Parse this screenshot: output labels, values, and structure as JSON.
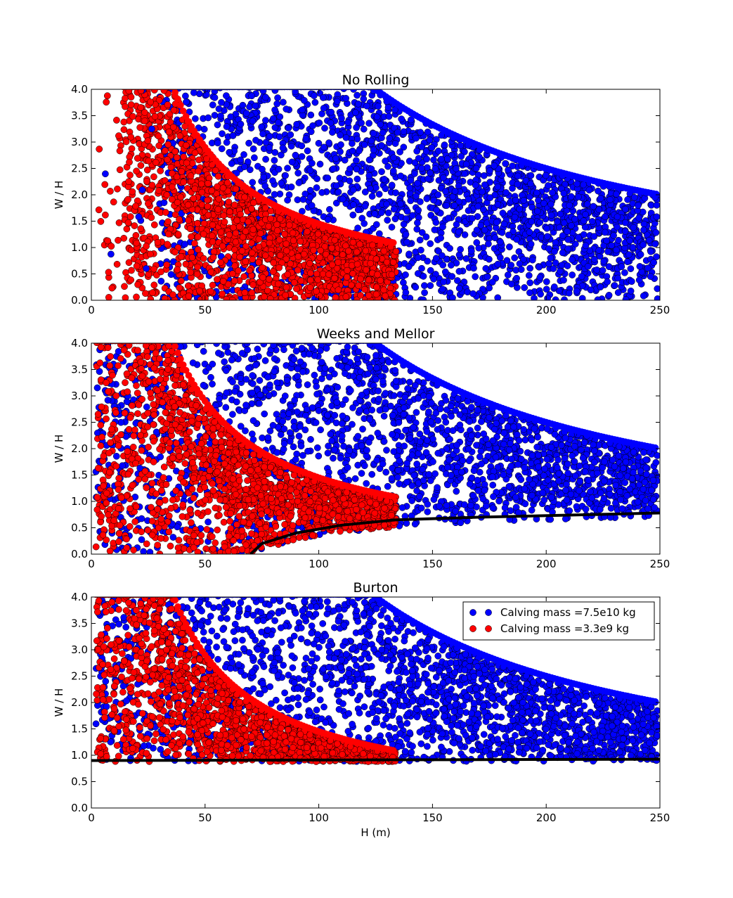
{
  "chart_data": [
    {
      "type": "scatter",
      "title": "No Rolling",
      "xlabel": "",
      "ylabel": "W / H",
      "xlim": [
        0,
        250
      ],
      "ylim": [
        0,
        4.0
      ],
      "xticks": [
        "0",
        "50",
        "100",
        "150",
        "200",
        "250"
      ],
      "yticks": [
        "0.0",
        "0.5",
        "1.0",
        "1.5",
        "2.0",
        "2.5",
        "3.0",
        "3.5",
        "4.0"
      ],
      "series": [
        {
          "name": "Calving mass =7.5e10 kg",
          "color": "#0000ff",
          "region": {
            "h_min": 30,
            "h_max": 250,
            "envelope": "W/H <= 500/H",
            "sample": [
              [
                40,
                4.0
              ],
              [
                60,
                3.9
              ],
              [
                100,
                3.5
              ],
              [
                133,
                2.5
              ],
              [
                150,
                2.2
              ],
              [
                200,
                1.5
              ],
              [
                250,
                1.0
              ],
              [
                245,
                0.2
              ]
            ]
          }
        },
        {
          "name": "Calving mass =3.3e9 kg",
          "color": "#ff0000",
          "region": {
            "h_min": 5,
            "h_max": 134,
            "envelope": "W/H <= 145/H",
            "sample": [
              [
                10,
                3.5
              ],
              [
                25,
                3.0
              ],
              [
                35,
                4.0
              ],
              [
                50,
                2.8
              ],
              [
                80,
                1.5
              ],
              [
                110,
                1.2
              ],
              [
                133,
                1.0
              ],
              [
                120,
                0.3
              ]
            ]
          }
        }
      ],
      "curves": []
    },
    {
      "type": "scatter",
      "title": "Weeks and Mellor",
      "xlabel": "",
      "ylabel": "W / H",
      "xlim": [
        0,
        250
      ],
      "ylim": [
        0,
        4.0
      ],
      "xticks": [
        "0",
        "50",
        "100",
        "150",
        "200",
        "250"
      ],
      "yticks": [
        "0.0",
        "0.5",
        "1.0",
        "1.5",
        "2.0",
        "2.5",
        "3.0",
        "3.5",
        "4.0"
      ],
      "series": [
        {
          "name": "Calving mass =7.5e10 kg",
          "color": "#0000ff",
          "region": {
            "h_min": 0,
            "h_max": 250,
            "envelope": "W/H <= 500/H",
            "sample": [
              [
                60,
                3.8
              ],
              [
                100,
                3.0
              ],
              [
                150,
                2.5
              ],
              [
                200,
                1.8
              ],
              [
                250,
                1.5
              ],
              [
                245,
                0.9
              ]
            ]
          }
        },
        {
          "name": "Calving mass =3.3e9 kg",
          "color": "#ff0000",
          "region": {
            "h_min": 2,
            "h_max": 134,
            "envelope": "W/H <= 145/H",
            "sample": [
              [
                10,
                3.0
              ],
              [
                30,
                3.8
              ],
              [
                60,
                2.0
              ],
              [
                100,
                1.2
              ],
              [
                133,
                1.0
              ],
              [
                70,
                0.1
              ]
            ]
          }
        }
      ],
      "curves": [
        {
          "name": "",
          "color": "#000000",
          "points": [
            [
              70,
              0.0
            ],
            [
              75,
              0.2
            ],
            [
              90,
              0.4
            ],
            [
              110,
              0.55
            ],
            [
              134,
              0.65
            ],
            [
              170,
              0.7
            ],
            [
              210,
              0.74
            ],
            [
              250,
              0.78
            ]
          ]
        }
      ]
    },
    {
      "type": "scatter",
      "title": "Burton",
      "xlabel": "H (m)",
      "ylabel": "W / H",
      "xlim": [
        0,
        250
      ],
      "ylim": [
        0,
        4.0
      ],
      "xticks": [
        "0",
        "50",
        "100",
        "150",
        "200",
        "250"
      ],
      "yticks": [
        "0.0",
        "0.5",
        "1.0",
        "1.5",
        "2.0",
        "2.5",
        "3.0",
        "3.5",
        "4.0"
      ],
      "legend": {
        "placement": "top-right",
        "entries": [
          "Calving mass =7.5e10 kg",
          "Calving mass =3.3e9 kg"
        ]
      },
      "series": [
        {
          "name": "Calving mass =7.5e10 kg",
          "color": "#0000ff",
          "region": {
            "h_min": 0,
            "h_max": 250,
            "envelope": "0.9 <= W/H <= 500/H",
            "sample": [
              [
                60,
                3.8
              ],
              [
                100,
                3.0
              ],
              [
                150,
                2.5
              ],
              [
                200,
                1.5
              ],
              [
                250,
                1.5
              ],
              [
                240,
                0.95
              ]
            ]
          }
        },
        {
          "name": "Calving mass =3.3e9 kg",
          "color": "#ff0000",
          "region": {
            "h_min": 0,
            "h_max": 134,
            "envelope": "0.9 <= W/H <= 145/H",
            "sample": [
              [
                10,
                3.5
              ],
              [
                30,
                3.8
              ],
              [
                60,
                2.0
              ],
              [
                100,
                1.3
              ],
              [
                133,
                1.05
              ]
            ]
          }
        }
      ],
      "curves": [
        {
          "name": "",
          "color": "#000000",
          "points": [
            [
              0,
              0.9
            ],
            [
              50,
              0.905
            ],
            [
              100,
              0.91
            ],
            [
              150,
              0.915
            ],
            [
              200,
              0.92
            ],
            [
              250,
              0.925
            ]
          ]
        }
      ]
    }
  ]
}
